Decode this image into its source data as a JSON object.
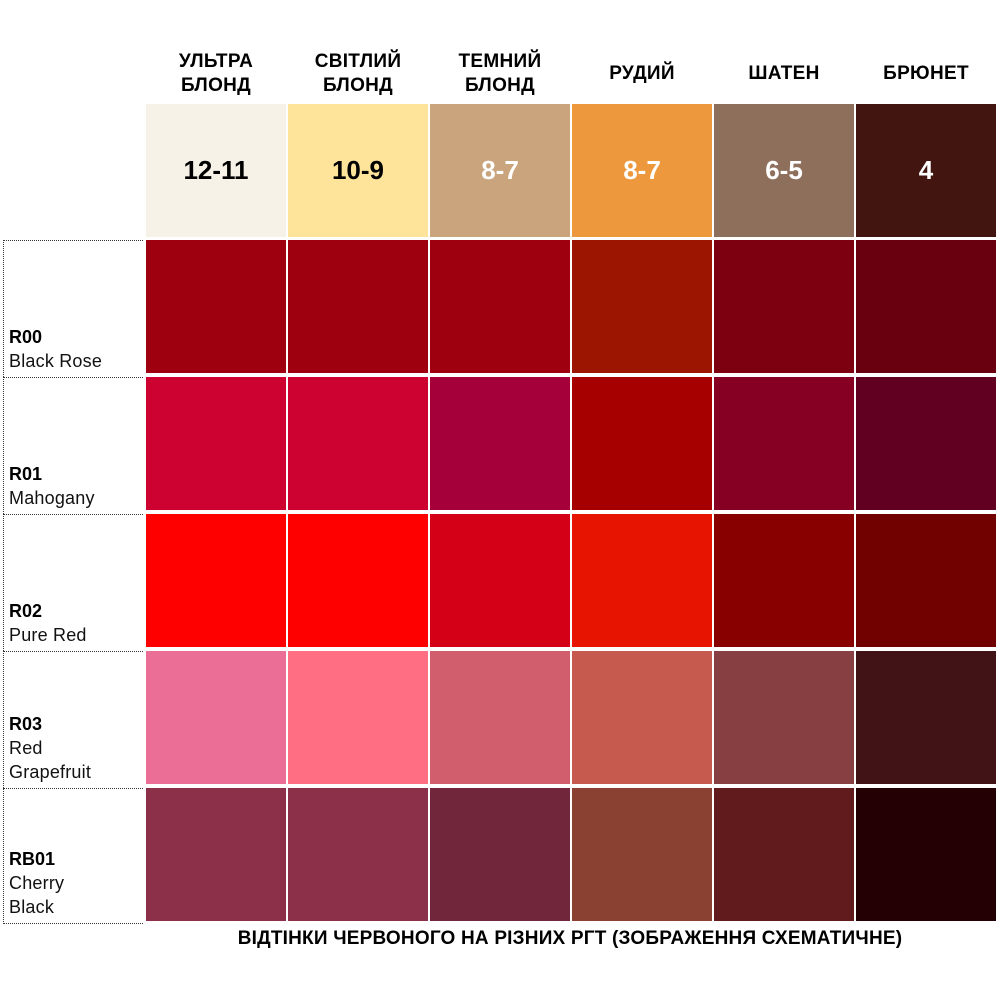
{
  "columns": [
    {
      "title": "УЛЬТРА\nБЛОНД",
      "level": "12-11",
      "color": "#f6f2e8",
      "text_color": "#000000"
    },
    {
      "title": "СВІТЛИЙ\nБЛОНД",
      "level": "10-9",
      "color": "#fde49a",
      "text_color": "#000000"
    },
    {
      "title": "ТЕМНИЙ\nБЛОНД",
      "level": "8-7",
      "color": "#c9a47c",
      "text_color": "#ffffff"
    },
    {
      "title": "РУДИЙ",
      "level": "8-7",
      "color": "#ed983d",
      "text_color": "#ffffff"
    },
    {
      "title": "ШАТЕН",
      "level": "6-5",
      "color": "#8d6f5c",
      "text_color": "#ffffff"
    },
    {
      "title": "БРЮНЕТ",
      "level": "4",
      "color": "#431510",
      "text_color": "#ffffff"
    }
  ],
  "rows": [
    {
      "code": "R00",
      "name": "Black Rose",
      "colors": [
        "#9f0010",
        "#9f0010",
        "#9f0010",
        "#9c1500",
        "#7d0010",
        "#69000f"
      ]
    },
    {
      "code": "R01",
      "name": "Mahogany",
      "colors": [
        "#cd0231",
        "#cd0231",
        "#a6003a",
        "#a60000",
        "#860024",
        "#610020"
      ]
    },
    {
      "code": "R02",
      "name": "Pure Red",
      "colors": [
        "#ff0000",
        "#ff0000",
        "#d40018",
        "#e61400",
        "#880000",
        "#710000"
      ]
    },
    {
      "code": "R03",
      "name": "Red\nGrapefruit",
      "colors": [
        "#eb6e96",
        "#ff6e82",
        "#d15e6c",
        "#c65a4e",
        "#873f41",
        "#421316"
      ]
    },
    {
      "code": "RB01",
      "name": "Cherry\nBlack",
      "colors": [
        "#8c2f48",
        "#8c2f48",
        "#72263b",
        "#8b4131",
        "#611b1c",
        "#240004"
      ]
    }
  ],
  "caption": "ВІДТІНКИ ЧЕРВОНОГО НА РІЗНИХ РГТ (ЗОБРАЖЕННЯ СХЕМАТИЧНЕ)"
}
